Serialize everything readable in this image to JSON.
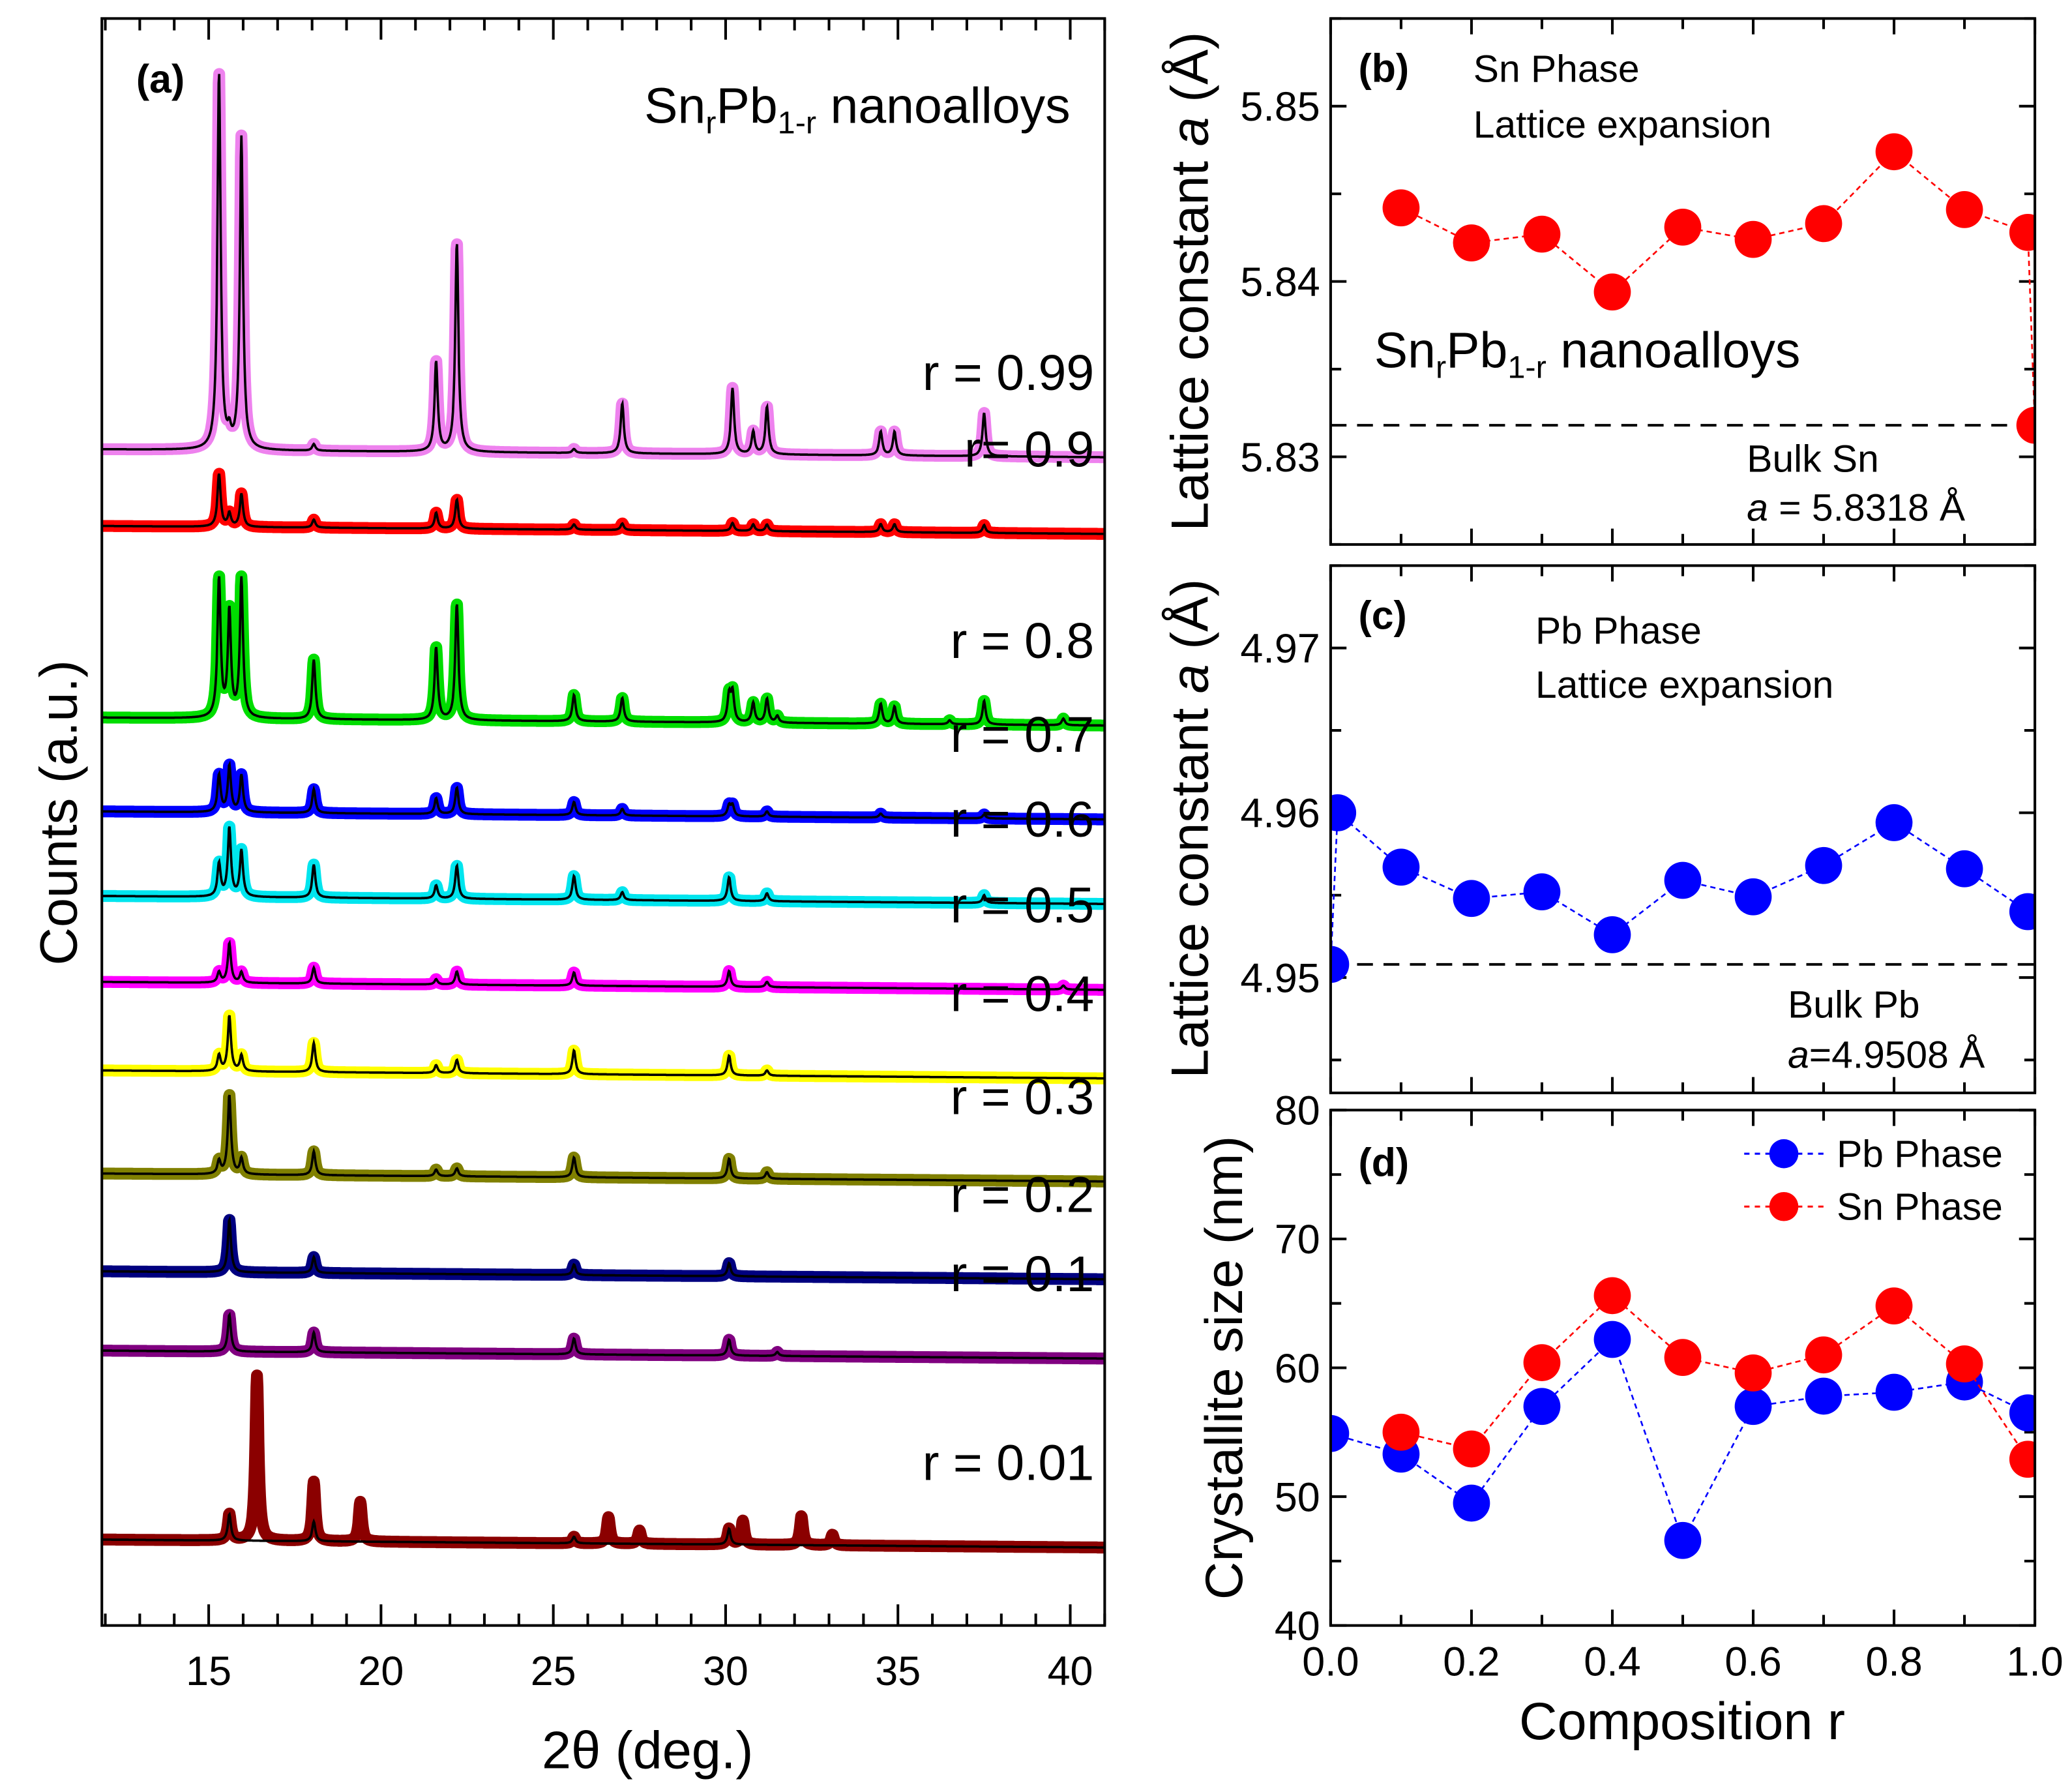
{
  "chart_data": [
    {
      "type": "line",
      "panel_label": "(a)",
      "title_parts": [
        "Sn",
        "r",
        "Pb",
        "1-r",
        " nanoalloys"
      ],
      "xlabel": "2θ (deg.)",
      "ylabel": "Counts (a.u.)",
      "xlim": [
        11.9,
        41
      ],
      "ylim": [
        0,
        1210
      ],
      "xticks": [
        15,
        20,
        25,
        30,
        35,
        40
      ],
      "series": [
        {
          "name": "r = 0.99",
          "color": "#ee82ee",
          "marker": "square",
          "offset": 890,
          "peaks": [
            [
              15.3,
              285
            ],
            [
              15.6,
              10
            ],
            [
              15.95,
              236
            ],
            [
              18.05,
              5
            ],
            [
              21.6,
              68
            ],
            [
              22.2,
              158
            ],
            [
              25.6,
              3
            ],
            [
              27.0,
              38
            ],
            [
              30.2,
              50
            ],
            [
              30.8,
              17
            ],
            [
              31.2,
              36
            ],
            [
              34.5,
              18
            ],
            [
              34.9,
              18
            ],
            [
              37.5,
              33
            ]
          ]
        },
        {
          "name": "r= 0.9",
          "color": "#ff0000",
          "marker": "circle",
          "offset": 832,
          "peaks": [
            [
              15.3,
              40
            ],
            [
              15.6,
              10
            ],
            [
              15.95,
              25
            ],
            [
              18.05,
              6
            ],
            [
              21.6,
              12
            ],
            [
              22.2,
              22
            ],
            [
              25.6,
              4
            ],
            [
              27.0,
              5
            ],
            [
              30.2,
              6
            ],
            [
              30.8,
              5
            ],
            [
              31.2,
              5
            ],
            [
              34.5,
              6
            ],
            [
              34.9,
              6
            ],
            [
              37.5,
              6
            ]
          ]
        },
        {
          "name": "r = 0.8",
          "color": "#00dd00",
          "marker": "triangle-up",
          "offset": 687,
          "peaks": [
            [
              15.3,
              105
            ],
            [
              15.6,
              80
            ],
            [
              15.95,
              105
            ],
            [
              18.05,
              45
            ],
            [
              21.6,
              55
            ],
            [
              22.2,
              88
            ],
            [
              25.6,
              20
            ],
            [
              27.0,
              18
            ],
            [
              30.1,
              20
            ],
            [
              30.2,
              22
            ],
            [
              30.8,
              15
            ],
            [
              31.2,
              18
            ],
            [
              31.5,
              5
            ],
            [
              34.5,
              15
            ],
            [
              34.9,
              13
            ],
            [
              36.5,
              3
            ],
            [
              37.5,
              18
            ],
            [
              39.8,
              5
            ]
          ]
        },
        {
          "name": "r = 0.7",
          "color": "#0000ff",
          "marker": "triangle-down",
          "offset": 616,
          "peaks": [
            [
              15.3,
              28
            ],
            [
              15.6,
              35
            ],
            [
              15.95,
              28
            ],
            [
              18.05,
              18
            ],
            [
              21.6,
              12
            ],
            [
              22.2,
              20
            ],
            [
              25.6,
              10
            ],
            [
              27.0,
              5
            ],
            [
              30.1,
              8
            ],
            [
              30.2,
              8
            ],
            [
              31.2,
              4
            ],
            [
              34.5,
              3
            ],
            [
              37.5,
              3
            ]
          ]
        },
        {
          "name": "r = 0.6",
          "color": "#00e5ee",
          "marker": "diamond",
          "offset": 552,
          "peaks": [
            [
              15.3,
              25
            ],
            [
              15.6,
              52
            ],
            [
              15.95,
              35
            ],
            [
              18.05,
              25
            ],
            [
              21.6,
              10
            ],
            [
              22.2,
              25
            ],
            [
              25.6,
              18
            ],
            [
              27.0,
              6
            ],
            [
              30.1,
              18
            ],
            [
              31.2,
              6
            ],
            [
              37.5,
              6
            ]
          ]
        },
        {
          "name": "r = 0.5",
          "color": "#ff00ff",
          "marker": "triangle-left",
          "offset": 487,
          "peaks": [
            [
              15.3,
              8
            ],
            [
              15.6,
              30
            ],
            [
              15.95,
              8
            ],
            [
              18.05,
              12
            ],
            [
              21.6,
              4
            ],
            [
              22.2,
              10
            ],
            [
              25.6,
              10
            ],
            [
              30.1,
              12
            ],
            [
              31.2,
              4
            ],
            [
              39.8,
              3
            ]
          ]
        },
        {
          "name": "r = 0.4",
          "color": "#ffff00",
          "marker": "triangle-right",
          "offset": 420,
          "peaks": [
            [
              15.3,
              12
            ],
            [
              15.6,
              42
            ],
            [
              15.95,
              12
            ],
            [
              18.05,
              22
            ],
            [
              21.6,
              6
            ],
            [
              22.2,
              10
            ],
            [
              25.6,
              18
            ],
            [
              30.1,
              15
            ],
            [
              31.2,
              4
            ]
          ]
        },
        {
          "name": "r = 0.3",
          "color": "#808000",
          "marker": "hexagon",
          "offset": 342,
          "peaks": [
            [
              15.3,
              10
            ],
            [
              15.6,
              60
            ],
            [
              15.95,
              12
            ],
            [
              18.05,
              18
            ],
            [
              21.6,
              5
            ],
            [
              22.2,
              6
            ],
            [
              25.6,
              15
            ],
            [
              30.1,
              15
            ],
            [
              31.2,
              5
            ]
          ]
        },
        {
          "name": "r = 0.2",
          "color": "#000080",
          "marker": "star",
          "offset": 268,
          "peaks": [
            [
              15.6,
              40
            ],
            [
              18.05,
              12
            ],
            [
              25.6,
              8
            ],
            [
              30.1,
              10
            ]
          ]
        },
        {
          "name": "r = 0.1",
          "color": "#800080",
          "marker": "pentagon",
          "offset": 208,
          "peaks": [
            [
              15.6,
              28
            ],
            [
              18.05,
              15
            ],
            [
              25.6,
              12
            ],
            [
              30.1,
              12
            ],
            [
              31.5,
              3
            ]
          ]
        },
        {
          "name": "r = 0.01",
          "color": "#8b0000",
          "marker": "sphere",
          "offset": 65,
          "peaks": [
            [
              15.6,
              20
            ],
            [
              18.05,
              15
            ],
            [
              25.6,
              5
            ],
            [
              30.1,
              12
            ]
          ],
          "observed_extra_peaks": [
            [
              16.4,
              125
            ],
            [
              18.05,
              30
            ],
            [
              19.4,
              30
            ],
            [
              26.6,
              20
            ],
            [
              27.5,
              10
            ],
            [
              30.5,
              18
            ],
            [
              32.2,
              22
            ],
            [
              33.1,
              8
            ]
          ]
        }
      ]
    },
    {
      "type": "line",
      "panel_label": "(b)",
      "annotation_lines": [
        "Sn Phase",
        "Lattice expansion"
      ],
      "inner_title_parts": [
        "Sn",
        "r",
        "Pb",
        "1-r",
        " nanoalloys"
      ],
      "ylabel_parts": [
        "Lattice constant ",
        "a",
        " (Å)"
      ],
      "xlim": [
        0,
        1.0
      ],
      "ylim": [
        5.825,
        5.855
      ],
      "yticks": [
        5.83,
        5.84,
        5.85
      ],
      "ytick_labels": [
        "5.83",
        "5.84",
        "5.85"
      ],
      "reference": {
        "value": 5.8318,
        "label_lines": [
          "Bulk Sn",
          "a",
          " = 5.8318 Å"
        ]
      },
      "series": [
        {
          "color": "#ff0000",
          "x": [
            0.1,
            0.2,
            0.3,
            0.4,
            0.5,
            0.6,
            0.7,
            0.8,
            0.9,
            0.99,
            1.0
          ],
          "y": [
            5.8442,
            5.8422,
            5.8427,
            5.8394,
            5.8431,
            5.8424,
            5.8433,
            5.8474,
            5.8441,
            5.8428,
            5.8318
          ]
        }
      ]
    },
    {
      "type": "line",
      "panel_label": "(c)",
      "annotation_lines": [
        "Pb Phase",
        "Lattice expansion"
      ],
      "ylabel_parts": [
        "Lattice constant ",
        "a",
        " (Å)"
      ],
      "xlim": [
        0,
        1.0
      ],
      "ylim": [
        4.943,
        4.975
      ],
      "yticks": [
        4.95,
        4.96,
        4.97
      ],
      "ytick_labels": [
        "4.95",
        "4.96",
        "4.97"
      ],
      "reference": {
        "value": 4.9508,
        "label_lines": [
          "Bulk Pb",
          "a",
          "=4.9508 Å"
        ]
      },
      "series": [
        {
          "color": "#0000ff",
          "x": [
            0,
            0.01,
            0.1,
            0.2,
            0.3,
            0.4,
            0.5,
            0.6,
            0.7,
            0.8,
            0.9,
            0.99
          ],
          "y": [
            4.9508,
            4.96,
            4.9567,
            4.9548,
            4.9552,
            4.9526,
            4.9559,
            4.9549,
            4.9568,
            4.9594,
            4.9566,
            4.954
          ]
        }
      ]
    },
    {
      "type": "line",
      "panel_label": "(d)",
      "xlabel": "Composition r",
      "ylabel": "Crystallite size (nm)",
      "xlim": [
        0,
        1.0
      ],
      "ylim": [
        40,
        80
      ],
      "yticks": [
        40,
        50,
        60,
        70,
        80
      ],
      "ytick_labels": [
        "40",
        "50",
        "60",
        "70",
        "80"
      ],
      "xticks": [
        0,
        0.2,
        0.4,
        0.6,
        0.8,
        1.0
      ],
      "xtick_labels": [
        "0.0",
        "0.2",
        "0.4",
        "0.6",
        "0.8",
        "1.0"
      ],
      "legend_position": "top-right",
      "series": [
        {
          "name": "Pb Phase",
          "color": "#0000ff",
          "x": [
            0,
            0.1,
            0.2,
            0.3,
            0.4,
            0.5,
            0.6,
            0.7,
            0.8,
            0.9,
            0.99
          ],
          "y": [
            54.9,
            53.3,
            49.5,
            57.0,
            62.2,
            46.6,
            57.0,
            57.8,
            58.1,
            58.9,
            56.5
          ]
        },
        {
          "name": "Sn Phase",
          "color": "#ff0000",
          "x": [
            0.1,
            0.2,
            0.3,
            0.4,
            0.5,
            0.6,
            0.7,
            0.8,
            0.9,
            0.99
          ],
          "y": [
            55.0,
            53.7,
            60.4,
            65.6,
            60.8,
            59.6,
            61.0,
            64.8,
            60.3,
            52.9
          ]
        }
      ]
    }
  ]
}
